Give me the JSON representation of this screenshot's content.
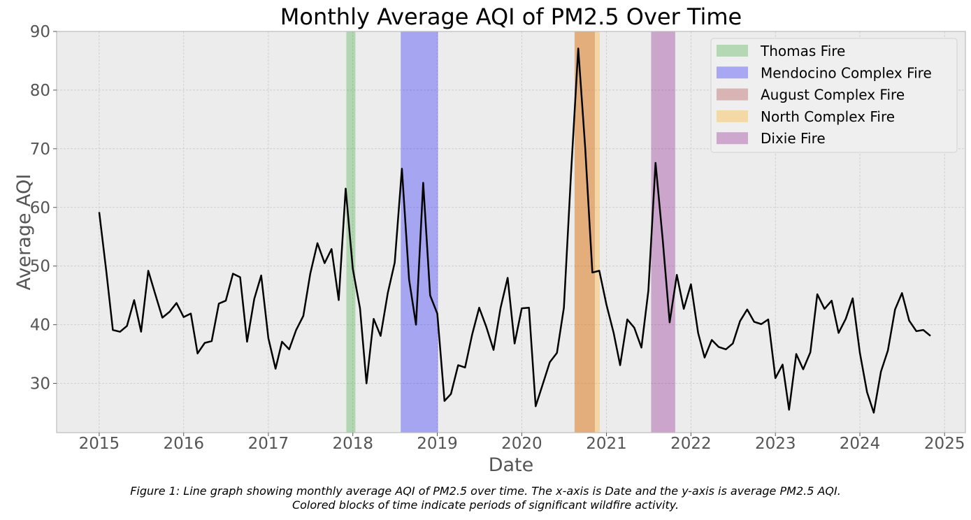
{
  "chart_data": {
    "type": "line",
    "title": "Monthly Average AQI of PM2.5 Over Time",
    "xlabel": "Date",
    "ylabel": "Average AQI",
    "xlim": [
      "2014-07-01",
      "2025-04-01"
    ],
    "ylim": [
      21.6,
      90
    ],
    "x_ticks": [
      "2015",
      "2016",
      "2017",
      "2018",
      "2019",
      "2020",
      "2021",
      "2022",
      "2023",
      "2024",
      "2025"
    ],
    "y_ticks": [
      "30",
      "40",
      "50",
      "60",
      "70",
      "80",
      "90"
    ],
    "grid": true,
    "legend_position": "top-right",
    "series": [
      {
        "color": "#000000",
        "x": [
          "2015-01",
          "2015-02",
          "2015-03",
          "2015-04",
          "2015-05",
          "2015-06",
          "2015-07",
          "2015-08",
          "2015-09",
          "2015-10",
          "2015-11",
          "2015-12",
          "2016-01",
          "2016-02",
          "2016-03",
          "2016-04",
          "2016-05",
          "2016-06",
          "2016-07",
          "2016-08",
          "2016-09",
          "2016-10",
          "2016-11",
          "2016-12",
          "2017-01",
          "2017-02",
          "2017-03",
          "2017-04",
          "2017-05",
          "2017-06",
          "2017-07",
          "2017-08",
          "2017-09",
          "2017-10",
          "2017-11",
          "2017-12",
          "2018-01",
          "2018-02",
          "2018-03",
          "2018-04",
          "2018-05",
          "2018-06",
          "2018-07",
          "2018-08",
          "2018-09",
          "2018-10",
          "2018-11",
          "2018-12",
          "2019-01",
          "2019-02",
          "2019-03",
          "2019-04",
          "2019-05",
          "2019-06",
          "2019-07",
          "2019-08",
          "2019-09",
          "2019-10",
          "2019-11",
          "2019-12",
          "2020-01",
          "2020-02",
          "2020-03",
          "2020-04",
          "2020-05",
          "2020-06",
          "2020-07",
          "2020-08",
          "2020-09",
          "2020-10",
          "2020-11",
          "2020-12",
          "2021-01",
          "2021-02",
          "2021-03",
          "2021-04",
          "2021-05",
          "2021-06",
          "2021-07",
          "2021-08",
          "2021-09",
          "2021-10",
          "2021-11",
          "2021-12",
          "2022-01",
          "2022-02",
          "2022-03",
          "2022-04",
          "2022-05",
          "2022-06",
          "2022-07",
          "2022-08",
          "2022-09",
          "2022-10",
          "2022-11",
          "2022-12",
          "2023-01",
          "2023-02",
          "2023-03",
          "2023-04",
          "2023-05",
          "2023-06",
          "2023-07",
          "2023-08",
          "2023-09",
          "2023-10",
          "2023-11",
          "2023-12",
          "2024-01",
          "2024-02",
          "2024-03",
          "2024-04",
          "2024-05",
          "2024-06",
          "2024-07",
          "2024-08",
          "2024-09",
          "2024-10",
          "2024-11"
        ],
        "y": [
          59.2,
          49.0,
          39.1,
          38.8,
          39.8,
          44.2,
          38.8,
          49.2,
          45.1,
          41.2,
          42.2,
          43.7,
          41.3,
          41.9,
          35.1,
          36.9,
          37.2,
          43.6,
          44.1,
          48.7,
          48.1,
          37.1,
          44.4,
          48.4,
          37.7,
          32.5,
          37.1,
          35.8,
          39.1,
          41.5,
          48.7,
          53.9,
          50.5,
          52.9,
          44.2,
          63.2,
          49.5,
          42.8,
          30.0,
          41.0,
          38.1,
          45.4,
          50.6,
          66.6,
          47.7,
          40.0,
          64.2,
          45.0,
          41.9,
          27.0,
          28.2,
          33.1,
          32.7,
          38.4,
          42.9,
          39.6,
          35.7,
          42.8,
          48.0,
          36.8,
          42.8,
          42.9,
          26.1,
          29.9,
          33.6,
          35.2,
          42.9,
          65.9,
          87.1,
          70.2,
          48.9,
          49.2,
          43.4,
          38.6,
          33.1,
          40.9,
          39.5,
          36.1,
          45.8,
          67.6,
          54.5,
          40.4,
          48.5,
          42.7,
          46.9,
          38.6,
          34.4,
          37.4,
          36.2,
          35.8,
          36.8,
          40.6,
          42.6,
          40.5,
          40.1,
          40.9,
          30.9,
          33.2,
          25.5,
          35.0,
          32.4,
          35.3,
          45.2,
          42.7,
          44.1,
          38.6,
          41.0,
          44.5,
          35.2,
          28.5,
          25.0,
          32.0,
          35.6,
          42.6,
          45.4,
          40.7,
          38.9,
          39.1,
          38.1
        ]
      }
    ],
    "fire_periods": [
      {
        "name": "Thomas Fire",
        "start": "2017-12-04",
        "end": "2018-01-12",
        "color": "#2ca02c"
      },
      {
        "name": "Mendocino Complex Fire",
        "start": "2018-07-27",
        "end": "2019-01-04",
        "color": "#0000ff"
      },
      {
        "name": "August Complex Fire",
        "start": "2020-08-16",
        "end": "2020-11-12",
        "color": "#a52a2a"
      },
      {
        "name": "North Complex Fire",
        "start": "2020-08-17",
        "end": "2020-12-03",
        "color": "#ffa500"
      },
      {
        "name": "Dixie Fire",
        "start": "2021-07-13",
        "end": "2021-10-25",
        "color": "#800080"
      }
    ]
  },
  "caption": {
    "line1": "Figure 1: Line graph showing monthly average AQI of PM2.5 over time. The x-axis is Date and the y-axis is average PM2.5 AQI.",
    "line2": "Colored blocks of time indicate periods of significant wildfire activity."
  }
}
